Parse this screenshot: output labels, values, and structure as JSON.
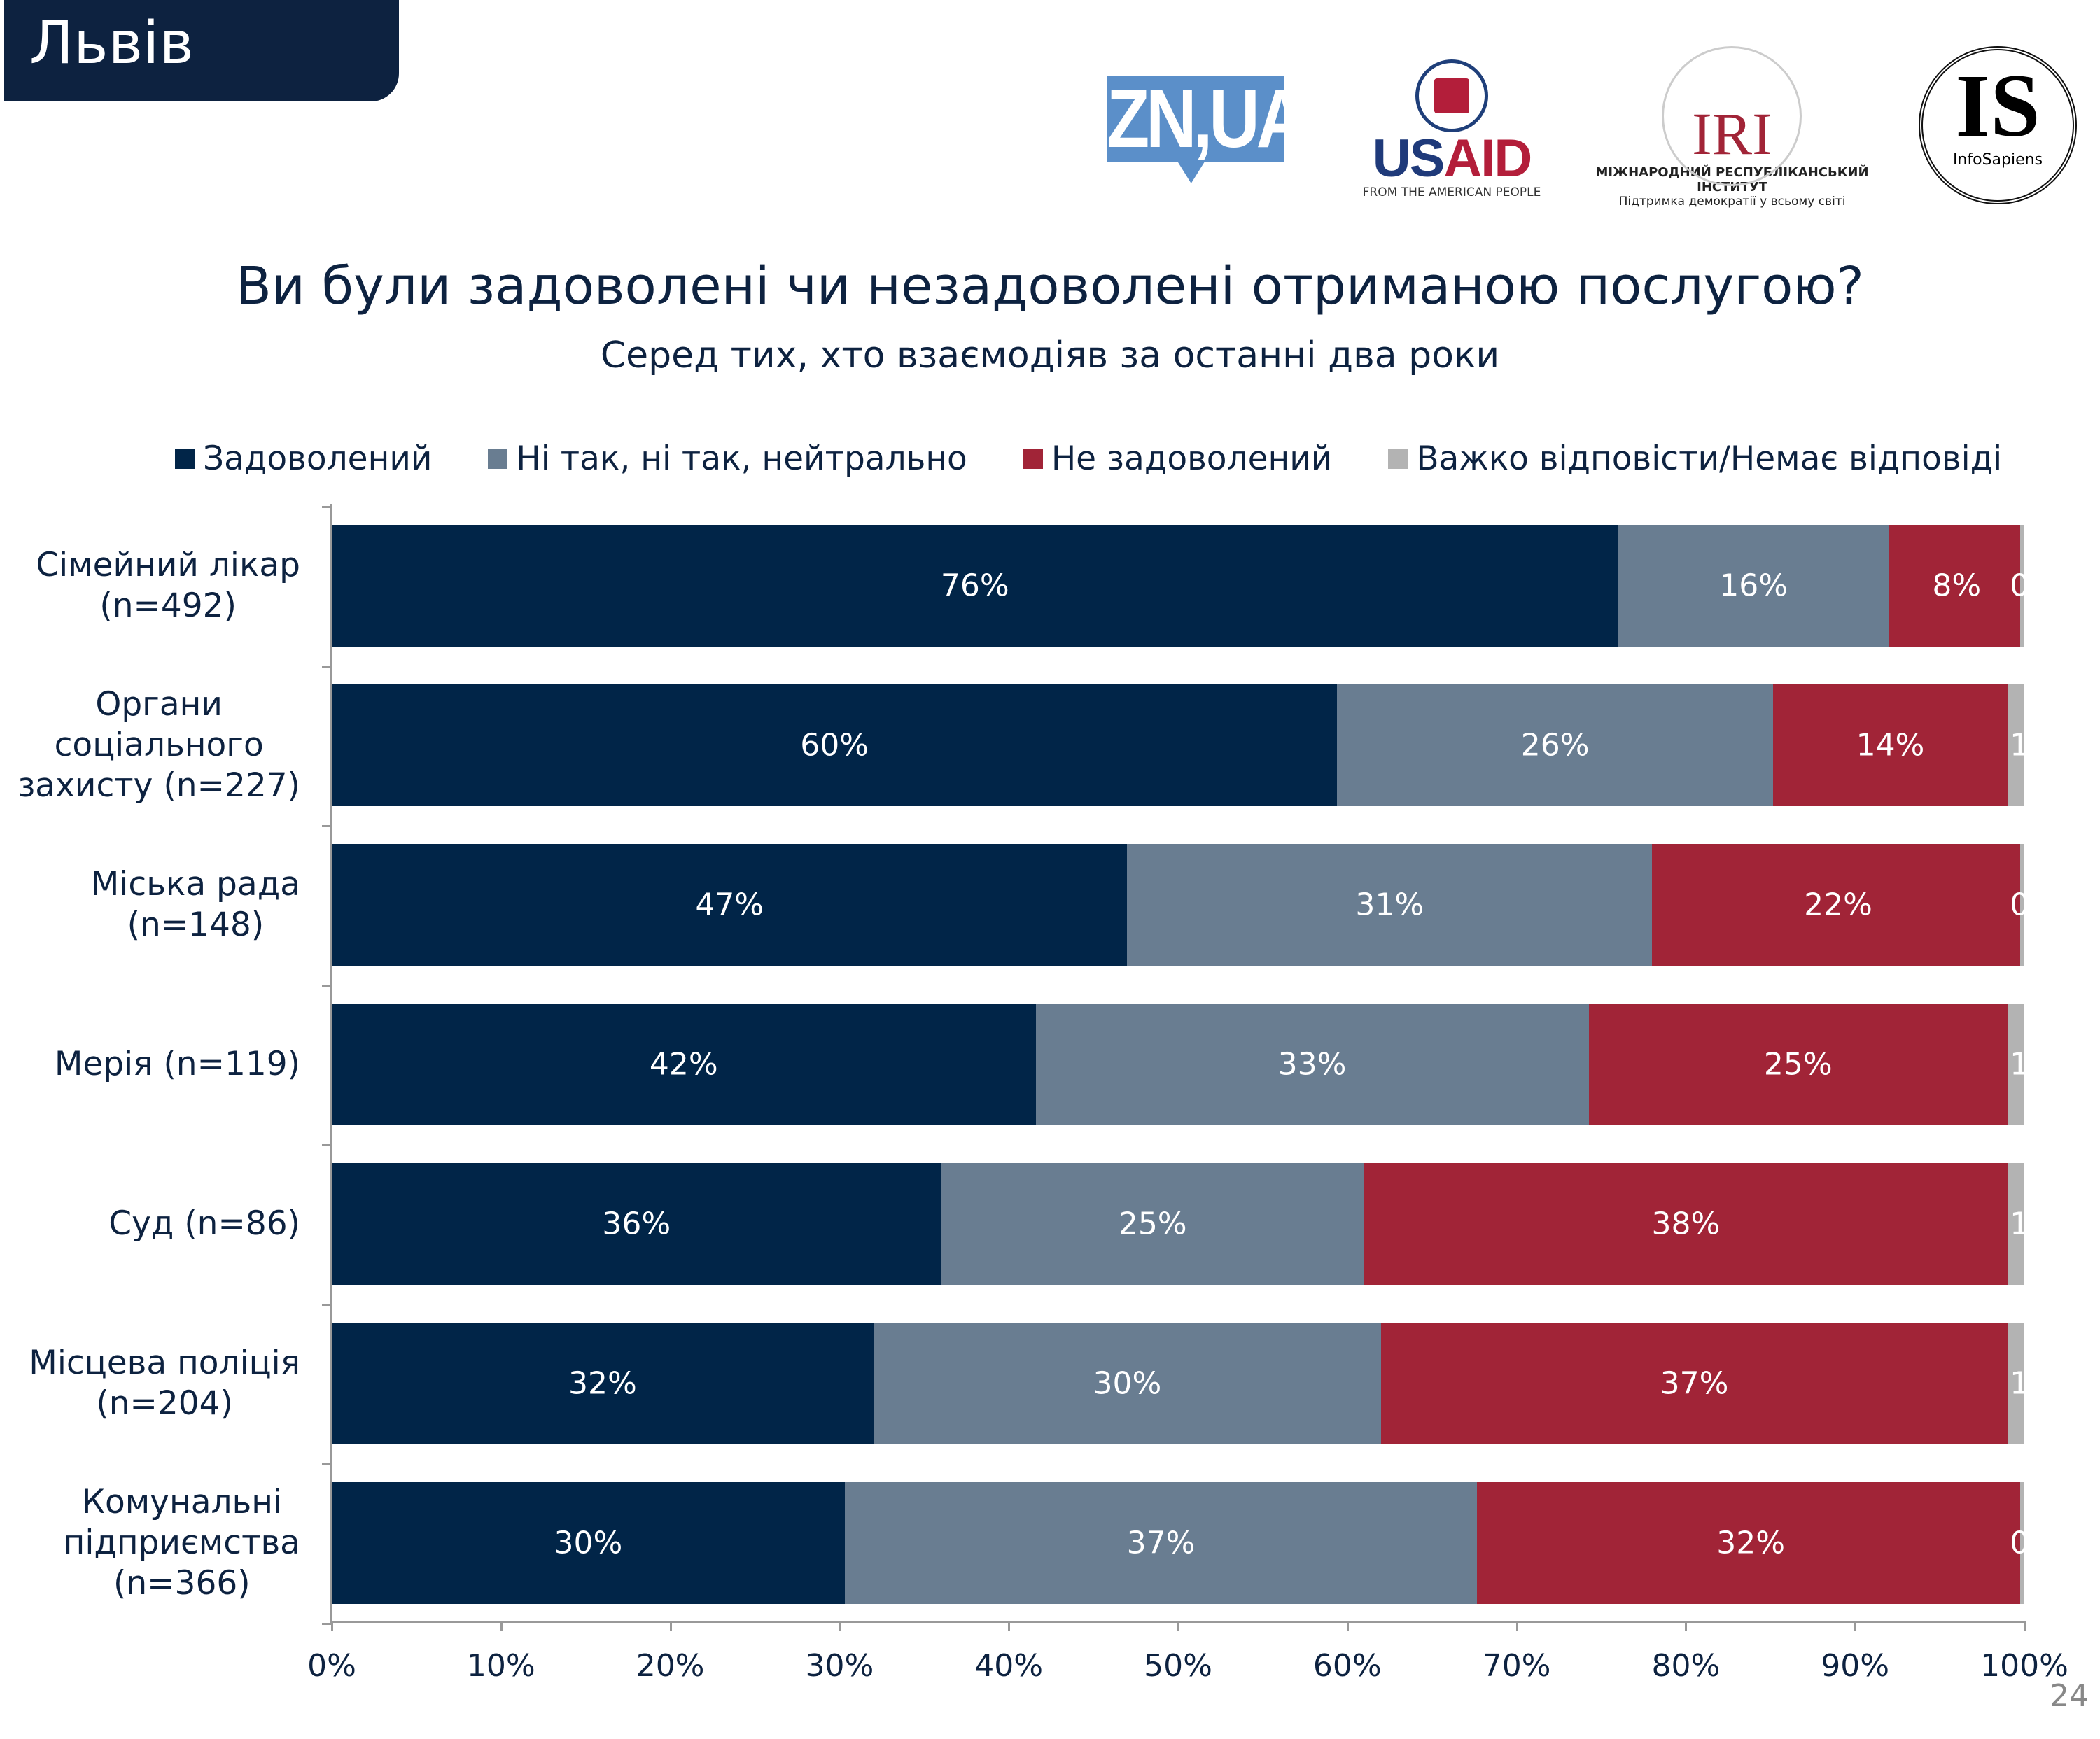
{
  "header": {
    "city": "Львів"
  },
  "logos": {
    "zn": "ZN,UA",
    "usaid": {
      "us": "US",
      "aid": "AID",
      "tagline": "FROM THE AMERICAN PEOPLE"
    },
    "iri": {
      "name": "IRI",
      "line1": "МІЖНАРОДНИЙ РЕСПУБЛІКАНСЬКИЙ ІНСТИТУТ",
      "line2": "Підтримка демократії у всьому світі"
    },
    "infosapiens": {
      "mark": "IS",
      "name": "InfoSapiens"
    }
  },
  "page_number": "24",
  "chart_data": {
    "type": "bar",
    "orientation": "horizontal",
    "stacked": "100%",
    "title": "Ви були задоволені чи незадоволені отриманою послугою?",
    "subtitle": "Серед тих, хто взаємодіяв за останні два роки",
    "legend_position": "top",
    "categories": [
      "Сімейний лікар\n(n=492)",
      "Органи\nсоціального\nзахисту (n=227)",
      "Міська рада\n(n=148)",
      "Мерія (n=119)",
      "Суд (n=86)",
      "Місцева поліція\n(n=204)",
      "Комунальні\nпідприємства\n(n=366)"
    ],
    "series": [
      {
        "name": "Задоволений",
        "color": "#012548",
        "values": [
          76,
          60,
          47,
          42,
          36,
          32,
          30
        ]
      },
      {
        "name": "Ні так, ні так, нейтрально",
        "color": "#697d91",
        "values": [
          16,
          26,
          31,
          33,
          25,
          30,
          37
        ]
      },
      {
        "name": "Не задоволений",
        "color": "#a12437",
        "values": [
          8,
          14,
          22,
          25,
          38,
          37,
          32
        ]
      },
      {
        "name": "Важко відповісти/Немає відповіді",
        "color": "#b3b3b3",
        "values": [
          0,
          1,
          0,
          1,
          1,
          1,
          0
        ]
      }
    ],
    "xlim": [
      0,
      100
    ],
    "xticks": [
      "0%",
      "10%",
      "20%",
      "30%",
      "40%",
      "50%",
      "60%",
      "70%",
      "80%",
      "90%",
      "100%"
    ],
    "grid": false
  }
}
